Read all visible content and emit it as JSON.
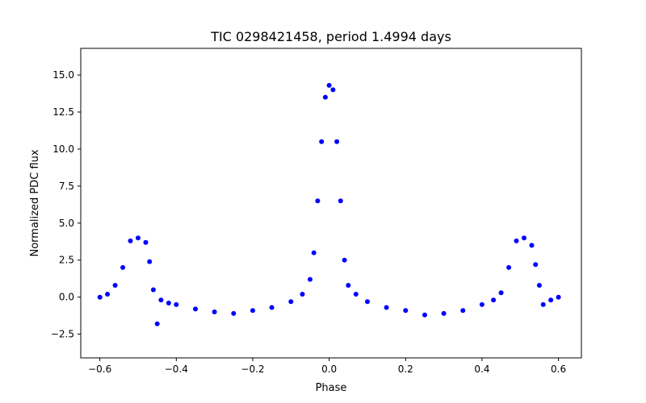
{
  "chart_data": {
    "type": "scatter",
    "title": "TIC 0298421458, period 1.4994 days",
    "xlabel": "Phase",
    "ylabel": "Normalized PDC flux",
    "xlim": [
      -0.65,
      0.66
    ],
    "ylim": [
      -4.1,
      16.8
    ],
    "xticks": [
      -0.6,
      -0.4,
      -0.2,
      0.0,
      0.2,
      0.4,
      0.6
    ],
    "xtick_labels": [
      "−0.6",
      "−0.4",
      "−0.2",
      "0.0",
      "0.2",
      "0.4",
      "0.6"
    ],
    "yticks": [
      -2.5,
      0.0,
      2.5,
      5.0,
      7.5,
      10.0,
      12.5,
      15.0
    ],
    "ytick_labels": [
      "−2.5",
      "0.0",
      "2.5",
      "5.0",
      "7.5",
      "10.0",
      "12.5",
      "15.0"
    ],
    "grid": false,
    "marker_color": "#0000ff",
    "series": [
      {
        "x": [
          -0.6,
          -0.58,
          -0.56,
          -0.54,
          -0.52,
          -0.5,
          -0.48,
          -0.47,
          -0.46,
          -0.45,
          -0.44,
          -0.42,
          -0.4,
          -0.35,
          -0.3,
          -0.25,
          -0.2,
          -0.15,
          -0.1,
          -0.07,
          -0.05,
          -0.04,
          -0.03,
          -0.02,
          -0.01,
          0.0,
          0.01,
          0.02,
          0.03,
          0.04,
          0.05,
          0.07,
          0.1,
          0.15,
          0.2,
          0.25,
          0.3,
          0.35,
          0.4,
          0.43,
          0.45,
          0.47,
          0.49,
          0.51,
          0.53,
          0.54,
          0.55,
          0.56,
          0.58,
          0.6
        ],
        "y": [
          0.0,
          0.2,
          0.8,
          2.0,
          3.8,
          4.0,
          3.7,
          2.4,
          0.5,
          -1.8,
          -0.2,
          -0.4,
          -0.5,
          -0.8,
          -1.0,
          -1.1,
          -0.9,
          -0.7,
          -0.3,
          0.2,
          1.2,
          3.0,
          6.5,
          10.5,
          13.5,
          14.3,
          14.0,
          10.5,
          6.5,
          2.5,
          0.8,
          0.2,
          -0.3,
          -0.7,
          -0.9,
          -1.2,
          -1.1,
          -0.9,
          -0.5,
          -0.2,
          0.3,
          2.0,
          3.8,
          4.0,
          3.5,
          2.2,
          0.8,
          -0.5,
          -0.2,
          0.0
        ]
      }
    ]
  }
}
